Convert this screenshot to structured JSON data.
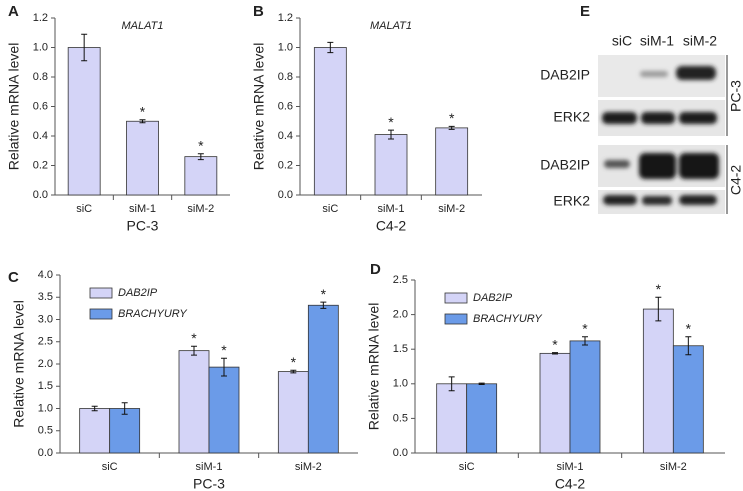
{
  "chart_data": [
    {
      "type": "bar",
      "panel_label": "A",
      "title": "MALAT1",
      "y_label": "Relative mRNA level",
      "x_label": "PC-3",
      "categories": [
        "siC",
        "siM-1",
        "siM-2"
      ],
      "values": [
        1.0,
        0.5,
        0.26
      ],
      "errors": [
        0.09,
        0.01,
        0.02
      ],
      "significance": [
        null,
        "*",
        "*"
      ],
      "color": "#d4d4f7",
      "ylim": [
        0,
        1.2
      ],
      "yticks": [
        {
          "value": 0,
          "label": "0.0"
        },
        0.2,
        0.4,
        0.6,
        0.8,
        {
          "value": 1,
          "label": "1.0"
        },
        1.2
      ]
    },
    {
      "type": "bar",
      "panel_label": "B",
      "title": "MALAT1",
      "y_label": "Relative mRNA level",
      "x_label": "C4-2",
      "categories": [
        "siC",
        "siM-1",
        "siM-2"
      ],
      "values": [
        1.0,
        0.41,
        0.455
      ],
      "errors": [
        0.035,
        0.03,
        0.01
      ],
      "significance": [
        null,
        "*",
        "*"
      ],
      "color": "#d4d4f7",
      "ylim": [
        0,
        1.2
      ],
      "yticks": [
        {
          "value": 0,
          "label": "0.0"
        },
        0.2,
        0.4,
        0.6,
        0.8,
        {
          "value": 1,
          "label": "1.0"
        },
        1.2
      ]
    },
    {
      "type": "bar",
      "panel_label": "C",
      "y_label": "Relative mRNA level",
      "x_label": "PC-3",
      "categories": [
        "siC",
        "siM-1",
        "siM-2"
      ],
      "legend": "top-left",
      "series": [
        {
          "name": "DAB2IP",
          "color": "#d4d4f7",
          "values": [
            1.0,
            2.3,
            1.83
          ],
          "errors": [
            0.05,
            0.1,
            0.03
          ],
          "significance": [
            null,
            "*",
            "*"
          ]
        },
        {
          "name": "BRACHYURY",
          "color": "#6b9be8",
          "values": [
            1.0,
            1.93,
            3.32
          ],
          "errors": [
            0.13,
            0.2,
            0.07
          ],
          "significance": [
            null,
            "*",
            "*"
          ]
        }
      ],
      "ylim": [
        0,
        4
      ],
      "yticks": [
        {
          "value": 0,
          "label": "0.0"
        },
        0.5,
        {
          "value": 1,
          "label": "1.0"
        },
        1.5,
        {
          "value": 2,
          "label": "2.0"
        },
        2.5,
        {
          "value": 3,
          "label": "3.0"
        },
        3.5,
        {
          "value": 4,
          "label": "4.0"
        }
      ]
    },
    {
      "type": "bar",
      "panel_label": "D",
      "y_label": "Relative mRNA level",
      "x_label": "C4-2",
      "categories": [
        "siC",
        "siM-1",
        "siM-2"
      ],
      "legend": "top-left",
      "series": [
        {
          "name": "DAB2IP",
          "color": "#d4d4f7",
          "values": [
            1.0,
            1.44,
            2.08
          ],
          "errors": [
            0.1,
            0.01,
            0.17
          ],
          "significance": [
            null,
            "*",
            "*"
          ]
        },
        {
          "name": "BRACHYURY",
          "color": "#6b9be8",
          "values": [
            1.0,
            1.62,
            1.55
          ],
          "errors": [
            0.01,
            0.06,
            0.13
          ],
          "significance": [
            null,
            "*",
            "*"
          ]
        }
      ],
      "ylim": [
        0,
        2.5
      ],
      "yticks": [
        {
          "value": 0,
          "label": "0.0"
        },
        0.5,
        {
          "value": 1,
          "label": "1.0"
        },
        1.5,
        {
          "value": 2,
          "label": "2.0"
        },
        2.5
      ]
    }
  ],
  "blot": {
    "panel_label": "E",
    "lanes": [
      "siC",
      "siM-1",
      "siM-2"
    ],
    "groups": [
      {
        "name": "PC-3",
        "rows": [
          "DAB2IP",
          "ERK2"
        ]
      },
      {
        "name": "C4-2",
        "rows": [
          "DAB2IP",
          "ERK2"
        ]
      }
    ]
  }
}
